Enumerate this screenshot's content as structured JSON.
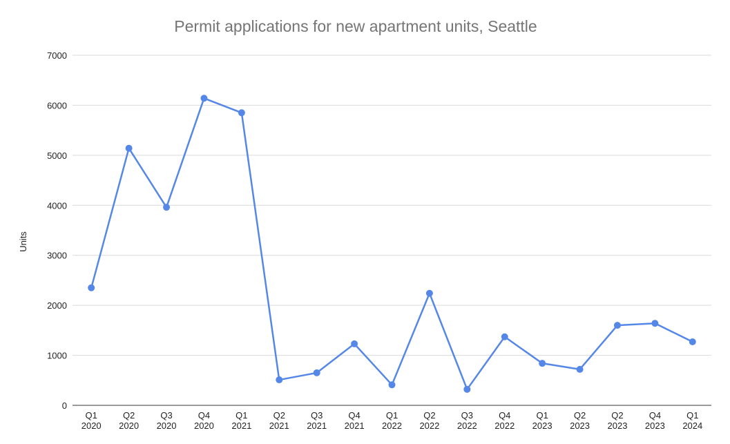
{
  "chart_data": {
    "type": "line",
    "title": "Permit applications for new apartment units, Seattle",
    "y_label": "Units",
    "categories": [
      [
        "Q1",
        "2020"
      ],
      [
        "Q2",
        "2020"
      ],
      [
        "Q3",
        "2020"
      ],
      [
        "Q4",
        "2020"
      ],
      [
        "Q1",
        "2021"
      ],
      [
        "Q2",
        "2021"
      ],
      [
        "Q3",
        "2021"
      ],
      [
        "Q4",
        "2021"
      ],
      [
        "Q1",
        "2022"
      ],
      [
        "Q2",
        "2022"
      ],
      [
        "Q3",
        "2022"
      ],
      [
        "Q4",
        "2022"
      ],
      [
        "Q1",
        "2023"
      ],
      [
        "Q2",
        "2023"
      ],
      [
        "Q2",
        "2023"
      ],
      [
        "Q4",
        "2023"
      ],
      [
        "Q1",
        "2024"
      ]
    ],
    "values": [
      2350,
      5140,
      3960,
      6140,
      5850,
      510,
      650,
      1230,
      410,
      2240,
      320,
      1370,
      840,
      720,
      1600,
      1640,
      1270
    ],
    "color": "#5587e8",
    "ylim": [
      0,
      7000
    ],
    "yticks": [
      0,
      1000,
      2000,
      3000,
      4000,
      5000,
      6000,
      7000
    ],
    "grid": true
  }
}
